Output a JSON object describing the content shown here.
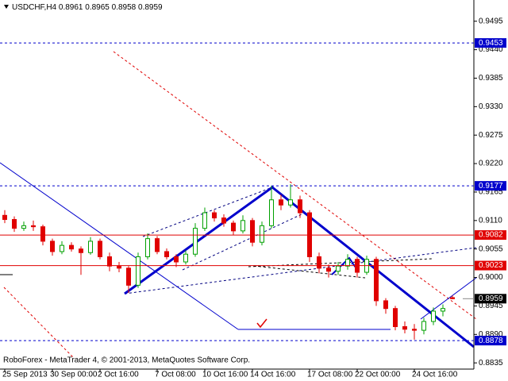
{
  "chart_data": {
    "type": "candlestick",
    "symbol": "USDCHF,H4",
    "footer": "RoboForex - MetaTrader 4, © 2001-2013, MetaQuotes Software Corp.",
    "categories": [
      "25 Sep 2013",
      null,
      null,
      null,
      null,
      "30 Sep 00:00",
      null,
      null,
      null,
      null,
      "2 Oct 16:00",
      null,
      null,
      null,
      null,
      null,
      "7 Oct 08:00",
      null,
      null,
      null,
      null,
      "10 Oct 16:00",
      null,
      null,
      null,
      null,
      "14 Oct 16:00",
      null,
      null,
      null,
      null,
      null,
      "17 Oct 08:00",
      null,
      null,
      null,
      null,
      "22 Oct 00:00",
      null,
      null,
      null,
      null,
      null,
      "24 Oct 16:00",
      null,
      null,
      null,
      null
    ],
    "open": [
      0.912,
      0.9112,
      0.9095,
      0.91,
      0.9098,
      0.907,
      0.905,
      0.9062,
      0.9055,
      0.9048,
      0.907,
      0.904,
      0.9022,
      0.9018,
      0.8985,
      0.904,
      0.9075,
      0.905,
      0.904,
      0.903,
      0.9045,
      0.9095,
      0.9125,
      0.9115,
      0.9105,
      0.909,
      0.911,
      0.9068,
      0.91,
      0.915,
      0.914,
      0.915,
      0.9125,
      0.904,
      0.9018,
      0.9012,
      0.9022,
      0.9035,
      0.901,
      0.9035,
      0.8955,
      0.894,
      0.8905,
      0.89,
      0.8898,
      0.8915,
      0.8935,
      0.8961
    ],
    "high": [
      0.913,
      0.9118,
      0.9108,
      0.911,
      0.9102,
      0.9075,
      0.907,
      0.9068,
      0.906,
      0.9078,
      0.9075,
      0.9048,
      0.903,
      0.9022,
      0.9048,
      0.9085,
      0.908,
      0.9056,
      0.9045,
      0.9052,
      0.9105,
      0.9135,
      0.913,
      0.9122,
      0.911,
      0.912,
      0.9115,
      0.9108,
      0.9177,
      0.916,
      0.918,
      0.9158,
      0.913,
      0.9048,
      0.9025,
      0.903,
      0.9045,
      0.904,
      0.9042,
      0.904,
      0.896,
      0.8945,
      0.8915,
      0.891,
      0.8922,
      0.8942,
      0.8948,
      0.8965
    ],
    "low": [
      0.9105,
      0.9088,
      0.909,
      0.909,
      0.9062,
      0.9042,
      0.9045,
      0.905,
      0.9005,
      0.9044,
      0.9035,
      0.9012,
      0.901,
      0.897,
      0.898,
      0.9035,
      0.9045,
      0.9035,
      0.902,
      0.9025,
      0.904,
      0.909,
      0.9108,
      0.9098,
      0.9082,
      0.9085,
      0.906,
      0.9062,
      0.9095,
      0.913,
      0.9135,
      0.9115,
      0.903,
      0.9008,
      0.9,
      0.9005,
      0.9015,
      0.9,
      0.9005,
      0.8945,
      0.893,
      0.8898,
      0.8892,
      0.888,
      0.889,
      0.8908,
      0.8925,
      0.8958
    ],
    "close": [
      0.9112,
      0.9095,
      0.91,
      0.9098,
      0.907,
      0.905,
      0.9062,
      0.9055,
      0.9048,
      0.907,
      0.904,
      0.9022,
      0.9018,
      0.8985,
      0.904,
      0.9075,
      0.905,
      0.904,
      0.903,
      0.9045,
      0.9095,
      0.9125,
      0.9115,
      0.9105,
      0.909,
      0.911,
      0.9068,
      0.91,
      0.915,
      0.914,
      0.915,
      0.9125,
      0.904,
      0.9018,
      0.9012,
      0.9022,
      0.9035,
      0.901,
      0.9035,
      0.8955,
      0.894,
      0.8905,
      0.89,
      0.8898,
      0.8915,
      0.8935,
      0.894,
      0.8959
    ],
    "up_color": "#00a000",
    "down_color": "#e00000",
    "ylim": [
      0.8823,
      0.9536
    ],
    "yticks": [
      {
        "value": 0.9495,
        "label": "0.9495"
      },
      {
        "value": 0.944,
        "label": "0.9440"
      },
      {
        "value": 0.9385,
        "label": "0.9385"
      },
      {
        "value": 0.933,
        "label": "0.9330"
      },
      {
        "value": 0.9275,
        "label": "0.9275"
      },
      {
        "value": 0.922,
        "label": "0.9220"
      },
      {
        "value": 0.9165,
        "label": "0.9165"
      },
      {
        "value": 0.911,
        "label": "0.9110"
      },
      {
        "value": 0.9055,
        "label": "0.9055"
      },
      {
        "value": 0.9,
        "label": "0.9000"
      },
      {
        "value": 0.8945,
        "label": "0.8945"
      },
      {
        "value": 0.889,
        "label": "0.8890"
      },
      {
        "value": 0.8835,
        "label": "0.8835"
      }
    ],
    "levels": [
      {
        "value": 0.9453,
        "color": "#0000cc",
        "dashed": true
      },
      {
        "value": 0.9177,
        "color": "#0000cc",
        "dashed": true
      },
      {
        "value": 0.9082,
        "color": "#e00000",
        "dashed": false
      },
      {
        "value": 0.9023,
        "color": "#e00000",
        "dashed": false
      },
      {
        "value": 0.8878,
        "color": "#0000cc",
        "dashed": true
      }
    ]
  }
}
